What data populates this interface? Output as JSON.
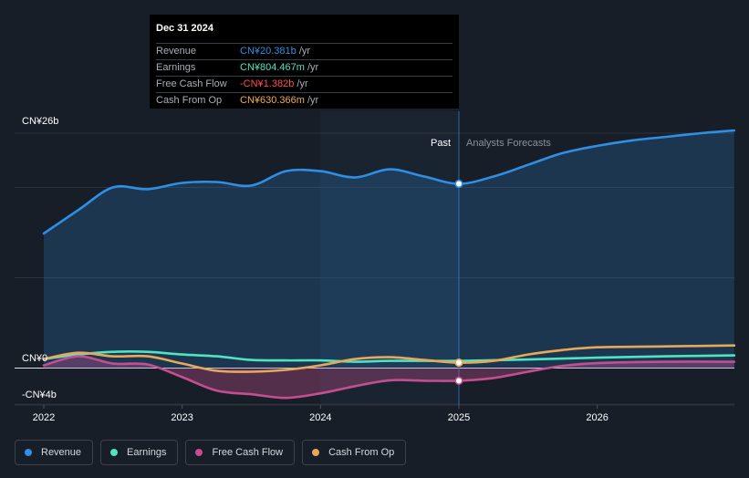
{
  "tooltip": {
    "date": "Dec 31 2024",
    "rows": [
      {
        "label": "Revenue",
        "value": "CN¥20.381b",
        "unit": "/yr",
        "color": "#2f8fe5"
      },
      {
        "label": "Earnings",
        "value": "CN¥804.467m",
        "unit": "/yr",
        "color": "#50e3c2"
      },
      {
        "label": "Free Cash Flow",
        "value": "-CN¥1.382b",
        "unit": "/yr",
        "color": "#ff4c4c"
      },
      {
        "label": "Cash From Op",
        "value": "CN¥630.366m",
        "unit": "/yr",
        "color": "#f0b040"
      }
    ]
  },
  "legend": [
    {
      "label": "Revenue",
      "color": "#2f8fe5"
    },
    {
      "label": "Earnings",
      "color": "#50e3c2"
    },
    {
      "label": "Free Cash Flow",
      "color": "#c24f8f"
    },
    {
      "label": "Cash From Op",
      "color": "#e8a85a"
    }
  ],
  "chart_data": {
    "type": "line",
    "title": "",
    "xlabel": "",
    "ylabel": "",
    "x_unit": "year",
    "xlim": [
      2021.99,
      2026.99
    ],
    "ylim": [
      -4,
      26
    ],
    "y_tick_labels": [
      {
        "value": 26,
        "label": "CN¥26b"
      },
      {
        "value": 0,
        "label": "CN¥0"
      },
      {
        "value": -4,
        "label": "-CN¥4b"
      }
    ],
    "x_tick_labels": [
      {
        "value": 2022,
        "label": "2022"
      },
      {
        "value": 2023,
        "label": "2023"
      },
      {
        "value": 2024,
        "label": "2024"
      },
      {
        "value": 2025,
        "label": "2025"
      },
      {
        "value": 2026,
        "label": "2026"
      }
    ],
    "divider": {
      "x": 2025.0,
      "past_label": "Past",
      "forecast_label": "Analysts Forecasts",
      "shade_from": 2024.0
    },
    "series": [
      {
        "name": "Revenue",
        "color": "#2f8fe5",
        "area": true,
        "x": [
          2022.0,
          2022.25,
          2022.5,
          2022.75,
          2023.0,
          2023.25,
          2023.5,
          2023.75,
          2024.0,
          2024.25,
          2024.5,
          2024.75,
          2025.0,
          2025.25,
          2025.5,
          2025.75,
          2026.0,
          2026.25,
          2026.5,
          2026.75,
          2026.99
        ],
        "y": [
          14.9,
          17.5,
          20.0,
          19.8,
          20.5,
          20.6,
          20.2,
          21.8,
          21.8,
          21.1,
          22.0,
          21.2,
          20.4,
          21.2,
          22.5,
          23.8,
          24.6,
          25.2,
          25.6,
          26.0,
          26.3
        ],
        "marker_at": 2025.0
      },
      {
        "name": "Earnings",
        "color": "#50e3c2",
        "area": false,
        "x": [
          2022.0,
          2022.25,
          2022.5,
          2022.75,
          2023.0,
          2023.25,
          2023.5,
          2023.75,
          2024.0,
          2024.25,
          2024.5,
          2024.75,
          2025.0,
          2025.5,
          2026.0,
          2026.5,
          2026.99
        ],
        "y": [
          1.0,
          1.5,
          1.8,
          1.8,
          1.5,
          1.3,
          0.9,
          0.85,
          0.85,
          0.7,
          0.8,
          0.8,
          0.8,
          0.95,
          1.15,
          1.3,
          1.4
        ]
      },
      {
        "name": "Free Cash Flow",
        "color": "#c24f8f",
        "area": true,
        "x": [
          2022.0,
          2022.25,
          2022.5,
          2022.75,
          2023.0,
          2023.25,
          2023.5,
          2023.75,
          2024.0,
          2024.25,
          2024.5,
          2024.75,
          2025.0,
          2025.25,
          2025.5,
          2025.75,
          2026.0,
          2026.5,
          2026.99
        ],
        "y": [
          0.3,
          1.3,
          0.5,
          0.4,
          -1.0,
          -2.5,
          -2.9,
          -3.3,
          -2.8,
          -2.0,
          -1.35,
          -1.4,
          -1.4,
          -1.1,
          -0.4,
          0.25,
          0.55,
          0.7,
          0.7
        ],
        "marker_at": 2025.0
      },
      {
        "name": "Cash From Op",
        "color": "#e8a85a",
        "area": false,
        "x": [
          2022.0,
          2022.25,
          2022.5,
          2022.75,
          2023.0,
          2023.25,
          2023.5,
          2023.75,
          2024.0,
          2024.25,
          2024.5,
          2024.75,
          2025.0,
          2025.25,
          2025.5,
          2025.75,
          2026.0,
          2026.5,
          2026.99
        ],
        "y": [
          1.0,
          1.7,
          1.3,
          1.3,
          0.5,
          -0.3,
          -0.4,
          -0.2,
          0.3,
          1.0,
          1.2,
          0.9,
          0.6,
          0.8,
          1.5,
          2.0,
          2.3,
          2.4,
          2.5
        ],
        "marker_at": 2025.0
      }
    ]
  }
}
